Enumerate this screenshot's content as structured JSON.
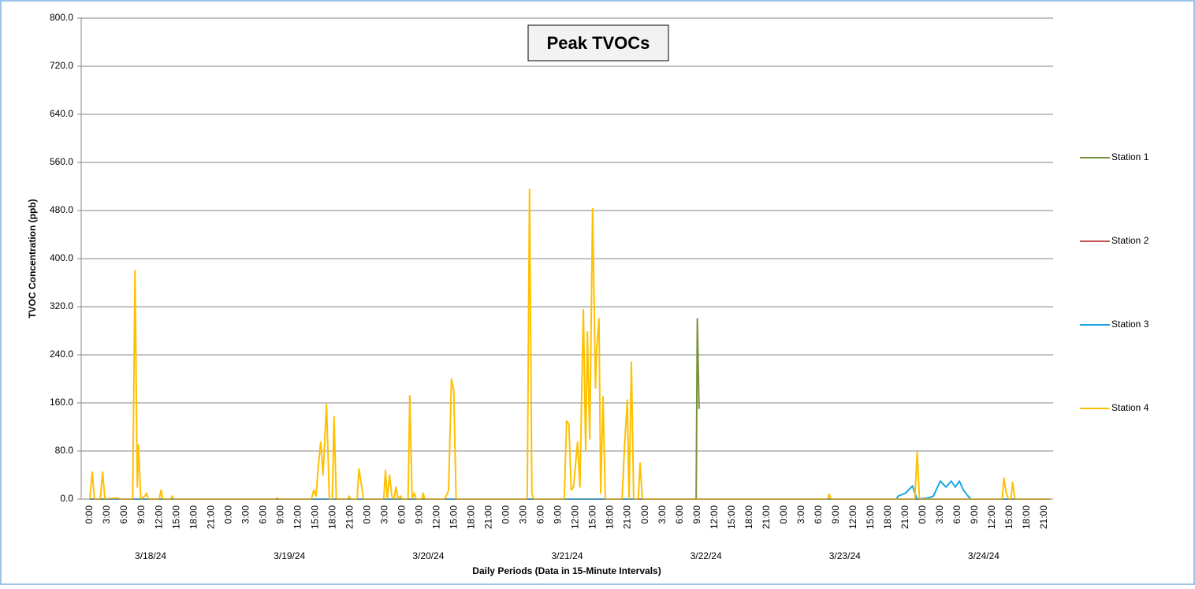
{
  "chart_data": {
    "type": "line",
    "title": "Peak TVOCs",
    "y_label": "TVOC Concentration (ppb)",
    "x_label": "Daily Periods (Data in 15-Minute Intervals)",
    "ylim": [
      0,
      800
    ],
    "yticks": [
      {
        "value": 0,
        "label": "0.0"
      },
      {
        "value": 80,
        "label": "80.0"
      },
      {
        "value": 160,
        "label": "160.0"
      },
      {
        "value": 240,
        "label": "240.0"
      },
      {
        "value": 320,
        "label": "320.0"
      },
      {
        "value": 400,
        "label": "400.0"
      },
      {
        "value": 480,
        "label": "480.0"
      },
      {
        "value": 560,
        "label": "560.0"
      },
      {
        "value": 640,
        "label": "640.0"
      },
      {
        "value": 720,
        "label": "720.0"
      },
      {
        "value": 800,
        "label": "800.0"
      }
    ],
    "xlim": [
      -1.5,
      166.5
    ],
    "xticks": [
      {
        "value": 0,
        "label": "0:00"
      },
      {
        "value": 3,
        "label": "3:00"
      },
      {
        "value": 6,
        "label": "6:00"
      },
      {
        "value": 9,
        "label": "9:00"
      },
      {
        "value": 12,
        "label": "12:00"
      },
      {
        "value": 15,
        "label": "15:00"
      },
      {
        "value": 18,
        "label": "18:00"
      },
      {
        "value": 21,
        "label": "21:00"
      },
      {
        "value": 24,
        "label": "0:00"
      },
      {
        "value": 27,
        "label": "3:00"
      },
      {
        "value": 30,
        "label": "6:00"
      },
      {
        "value": 33,
        "label": "9:00"
      },
      {
        "value": 36,
        "label": "12:00"
      },
      {
        "value": 39,
        "label": "15:00"
      },
      {
        "value": 42,
        "label": "18:00"
      },
      {
        "value": 45,
        "label": "21:00"
      },
      {
        "value": 48,
        "label": "0:00"
      },
      {
        "value": 51,
        "label": "3:00"
      },
      {
        "value": 54,
        "label": "6:00"
      },
      {
        "value": 57,
        "label": "9:00"
      },
      {
        "value": 60,
        "label": "12:00"
      },
      {
        "value": 63,
        "label": "15:00"
      },
      {
        "value": 66,
        "label": "18:00"
      },
      {
        "value": 69,
        "label": "21:00"
      },
      {
        "value": 72,
        "label": "0:00"
      },
      {
        "value": 75,
        "label": "3:00"
      },
      {
        "value": 78,
        "label": "6:00"
      },
      {
        "value": 81,
        "label": "9:00"
      },
      {
        "value": 84,
        "label": "12:00"
      },
      {
        "value": 87,
        "label": "15:00"
      },
      {
        "value": 90,
        "label": "18:00"
      },
      {
        "value": 93,
        "label": "21:00"
      },
      {
        "value": 96,
        "label": "0:00"
      },
      {
        "value": 99,
        "label": "3:00"
      },
      {
        "value": 102,
        "label": "6:00"
      },
      {
        "value": 105,
        "label": "9:00"
      },
      {
        "value": 108,
        "label": "12:00"
      },
      {
        "value": 111,
        "label": "15:00"
      },
      {
        "value": 114,
        "label": "18:00"
      },
      {
        "value": 117,
        "label": "21:00"
      },
      {
        "value": 120,
        "label": "0:00"
      },
      {
        "value": 123,
        "label": "3:00"
      },
      {
        "value": 126,
        "label": "6:00"
      },
      {
        "value": 129,
        "label": "9:00"
      },
      {
        "value": 132,
        "label": "12:00"
      },
      {
        "value": 135,
        "label": "15:00"
      },
      {
        "value": 138,
        "label": "18:00"
      },
      {
        "value": 141,
        "label": "21:00"
      },
      {
        "value": 144,
        "label": "0:00"
      },
      {
        "value": 147,
        "label": "3:00"
      },
      {
        "value": 150,
        "label": "6:00"
      },
      {
        "value": 153,
        "label": "9:00"
      },
      {
        "value": 156,
        "label": "12:00"
      },
      {
        "value": 159,
        "label": "15:00"
      },
      {
        "value": 162,
        "label": "18:00"
      },
      {
        "value": 165,
        "label": "21:00"
      }
    ],
    "x_groups": [
      {
        "value": 10.5,
        "label": "3/18/24"
      },
      {
        "value": 34.5,
        "label": "3/19/24"
      },
      {
        "value": 58.5,
        "label": "3/20/24"
      },
      {
        "value": 82.5,
        "label": "3/21/24"
      },
      {
        "value": 106.5,
        "label": "3/22/24"
      },
      {
        "value": 130.5,
        "label": "3/23/24"
      },
      {
        "value": 154.5,
        "label": "3/24/24"
      }
    ],
    "grid": true,
    "legend": "right",
    "series": [
      {
        "name": "Station 1",
        "color": "#77933c",
        "x": [
          0,
          104.8,
          105,
          105.3
        ],
        "values": [
          0,
          0,
          300,
          150
        ]
      },
      {
        "name": "Station 2",
        "color": "#c0504d",
        "x": [
          0,
          166
        ],
        "values": [
          0,
          0
        ]
      },
      {
        "name": "Station 3",
        "color": "#1aa6e4",
        "x": [
          0,
          139.4,
          139.7,
          141,
          142.2,
          142.6,
          143,
          145,
          145.8,
          147,
          148,
          148.9,
          149.6,
          150.3,
          151,
          151.8,
          152.3,
          166
        ],
        "values": [
          0,
          0,
          5,
          10,
          22,
          10,
          0,
          2,
          5,
          30,
          20,
          30,
          20,
          30,
          15,
          5,
          0,
          0
        ]
      },
      {
        "name": "Station 4",
        "color": "#ffc000",
        "x": [
          0,
          0.4,
          0.8,
          1.8,
          2.2,
          2.6,
          4.8,
          5.2,
          7.4,
          7.8,
          8.2,
          8.4,
          8.8,
          9.5,
          9.8,
          10.1,
          12.0,
          12.3,
          12.6,
          14.0,
          14.2,
          14.5,
          32.1,
          32.4,
          32.7,
          38.3,
          38.7,
          39.1,
          39.4,
          39.9,
          40.3,
          40.9,
          41.4,
          41.9,
          42.2,
          42.6,
          44.6,
          44.8,
          45.1,
          46.2,
          46.5,
          47.0,
          47.3,
          50.8,
          51.1,
          51.4,
          51.8,
          52.2,
          52.6,
          52.9,
          53.3,
          53.7,
          54.0,
          55.0,
          55.3,
          55.7,
          56.1,
          56.4,
          57.4,
          57.6,
          57.9,
          61.3,
          61.6,
          62.0,
          62.5,
          62.9,
          63.3,
          75.6,
          76.0,
          76.4,
          76.7,
          82.0,
          82.4,
          82.8,
          83.2,
          83.6,
          84.3,
          84.7,
          85.3,
          85.7,
          86.0,
          86.4,
          86.9,
          87.4,
          87.6,
          88.0,
          88.3,
          88.7,
          89.1,
          92.0,
          92.4,
          92.9,
          93.2,
          93.6,
          94.0,
          94.8,
          95.1,
          95.5,
          127.5,
          127.8,
          128.1,
          142.6,
          143.0,
          143.4,
          157.7,
          158.0,
          158.4,
          158.8,
          159.2,
          159.5,
          159.9,
          166
        ],
        "values": [
          0,
          45,
          0,
          0,
          45,
          0,
          2,
          0,
          0,
          380,
          20,
          90,
          0,
          5,
          10,
          0,
          0,
          15,
          0,
          0,
          5,
          0,
          0,
          2,
          0,
          0,
          15,
          5,
          45,
          95,
          40,
          157,
          0,
          0,
          137,
          0,
          0,
          5,
          0,
          0,
          50,
          20,
          0,
          0,
          48,
          0,
          40,
          5,
          0,
          20,
          0,
          5,
          0,
          0,
          172,
          0,
          10,
          0,
          0,
          10,
          0,
          0,
          5,
          15,
          200,
          180,
          0,
          0,
          515,
          10,
          0,
          0,
          130,
          125,
          15,
          20,
          95,
          20,
          315,
          80,
          278,
          100,
          483,
          185,
          250,
          300,
          10,
          170,
          0,
          0,
          85,
          165,
          0,
          228,
          0,
          0,
          60,
          0,
          0,
          8,
          0,
          0,
          78,
          0,
          0,
          35,
          10,
          0,
          0,
          28,
          0,
          0
        ]
      }
    ]
  }
}
